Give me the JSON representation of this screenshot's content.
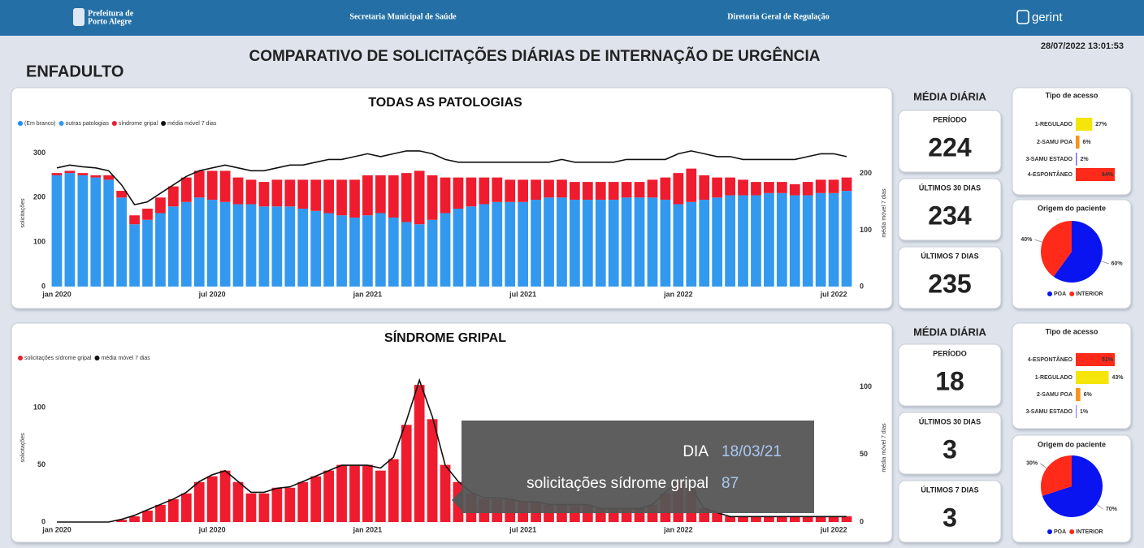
{
  "header": {
    "org_line1": "Prefeitura de",
    "org_line2": "Porto Alegre",
    "secretaria": "Secretaria Municipal de Saúde",
    "diretoria": "Diretoria Geral de Regulação",
    "brand": "gerint",
    "timestamp": "28/07/2022 13:01:53"
  },
  "unit": "ENFADULTO",
  "title": "COMPARATIVO DE SOLICITAÇÕES DIÁRIAS DE INTERNAÇÃO DE URGÊNCIA",
  "kpis": [
    {
      "heading": "MÉDIA DIÁRIA",
      "cards": [
        {
          "label": "PERÍODO",
          "value": 224
        },
        {
          "label": "ÚLTIMOS 30 DIAS",
          "value": 234
        },
        {
          "label": "ÚLTIMOS 7 DIAS",
          "value": 235
        }
      ]
    },
    {
      "heading": "MÉDIA DIÁRIA",
      "cards": [
        {
          "label": "PERÍODO",
          "value": 18
        },
        {
          "label": "ÚLTIMOS 30 DIAS",
          "value": 3
        },
        {
          "label": "ÚLTIMOS 7 DIAS",
          "value": 3
        }
      ]
    }
  ],
  "tooltip": {
    "label1": "DIA",
    "value1": "18/03/21",
    "label2": "solicitações sídrome gripal",
    "value2": 87
  },
  "chart_data": [
    {
      "type": "bar",
      "stacked": true,
      "title": "TODAS AS PATOLOGIAS",
      "ylabel": "solicitações",
      "y2label": "média móvel 7 dias",
      "categories": [
        "jan 2020",
        null,
        null,
        null,
        null,
        null,
        null,
        null,
        null,
        null,
        null,
        null,
        "jul 2020",
        null,
        null,
        null,
        null,
        null,
        null,
        null,
        null,
        null,
        null,
        null,
        "jan 2021",
        null,
        null,
        null,
        null,
        null,
        null,
        null,
        null,
        null,
        null,
        null,
        "jul 2021",
        null,
        null,
        null,
        null,
        null,
        null,
        null,
        null,
        null,
        null,
        null,
        "jan 2022",
        null,
        null,
        null,
        null,
        null,
        null,
        null,
        null,
        null,
        null,
        null,
        "jul 2022",
        null
      ],
      "ylim": [
        0,
        330
      ],
      "yticks": [
        0,
        100,
        200,
        300
      ],
      "y2lim": [
        0,
        260
      ],
      "y2ticks": [
        0,
        100,
        200
      ],
      "series": [
        {
          "name": "(Em branco)",
          "color": "#1a8cff",
          "values": [
            0,
            0,
            0,
            0,
            0,
            0,
            0,
            0,
            0,
            0,
            0,
            0,
            0,
            0,
            0,
            0,
            0,
            0,
            0,
            0,
            0,
            0,
            0,
            0,
            0,
            0,
            0,
            0,
            0,
            0,
            0,
            0,
            0,
            0,
            0,
            0,
            0,
            0,
            0,
            0,
            0,
            0,
            0,
            0,
            0,
            0,
            0,
            0,
            0,
            0,
            0,
            0,
            0,
            0,
            0,
            0,
            0,
            0,
            0,
            0,
            0,
            0
          ]
        },
        {
          "name": "outras patologias",
          "color": "#3399ee",
          "values": [
            250,
            255,
            250,
            245,
            240,
            200,
            140,
            150,
            165,
            180,
            190,
            200,
            195,
            190,
            185,
            185,
            180,
            180,
            180,
            175,
            170,
            165,
            160,
            155,
            160,
            165,
            155,
            145,
            140,
            150,
            165,
            175,
            180,
            185,
            190,
            190,
            190,
            195,
            200,
            200,
            195,
            195,
            195,
            195,
            200,
            200,
            200,
            195,
            185,
            190,
            195,
            200,
            205,
            205,
            205,
            210,
            210,
            205,
            205,
            210,
            210,
            215
          ]
        },
        {
          "name": "síndrome gripal",
          "color": "#ee1c2e",
          "values": [
            5,
            5,
            5,
            5,
            10,
            15,
            20,
            25,
            35,
            45,
            55,
            60,
            65,
            70,
            60,
            55,
            55,
            60,
            60,
            65,
            70,
            75,
            80,
            85,
            90,
            85,
            95,
            110,
            120,
            100,
            80,
            70,
            65,
            60,
            55,
            50,
            50,
            45,
            40,
            40,
            40,
            40,
            40,
            40,
            35,
            35,
            40,
            50,
            70,
            75,
            55,
            45,
            40,
            35,
            30,
            25,
            25,
            25,
            30,
            30,
            30,
            30
          ]
        },
        {
          "name": "média móvel 7 dias",
          "color": "#111111",
          "type": "line",
          "axis": "y2",
          "values": [
            210,
            215,
            212,
            210,
            205,
            180,
            145,
            150,
            165,
            180,
            195,
            205,
            210,
            215,
            210,
            205,
            205,
            210,
            215,
            215,
            220,
            225,
            225,
            230,
            235,
            230,
            235,
            240,
            240,
            235,
            225,
            220,
            220,
            220,
            220,
            220,
            220,
            220,
            220,
            225,
            220,
            220,
            220,
            220,
            225,
            225,
            225,
            225,
            235,
            240,
            235,
            230,
            230,
            225,
            225,
            225,
            225,
            225,
            230,
            235,
            235,
            230
          ]
        }
      ]
    },
    {
      "type": "bar",
      "stacked": true,
      "title": "SÍNDROME GRIPAL",
      "ylabel": "solicitações",
      "y2label": "média móvel 7 dias",
      "categories": [
        "jan 2020",
        null,
        null,
        null,
        null,
        null,
        null,
        null,
        null,
        null,
        null,
        null,
        "jul 2020",
        null,
        null,
        null,
        null,
        null,
        null,
        null,
        null,
        null,
        null,
        null,
        "jan 2021",
        null,
        null,
        null,
        null,
        null,
        null,
        null,
        null,
        null,
        null,
        null,
        "jul 2021",
        null,
        null,
        null,
        null,
        null,
        null,
        null,
        null,
        null,
        null,
        null,
        "jan 2022",
        null,
        null,
        null,
        null,
        null,
        null,
        null,
        null,
        null,
        null,
        null,
        "jul 2022",
        null
      ],
      "ylim": [
        0,
        130
      ],
      "yticks": [
        0,
        50,
        100
      ],
      "y2lim": [
        0,
        110
      ],
      "y2ticks": [
        0,
        50,
        100
      ],
      "series": [
        {
          "name": "solicitações sídrome gripal",
          "color": "#ee1c2e",
          "values": [
            0,
            0,
            0,
            0,
            0,
            2,
            5,
            10,
            15,
            20,
            25,
            35,
            40,
            45,
            35,
            25,
            25,
            30,
            30,
            35,
            40,
            45,
            50,
            50,
            50,
            45,
            55,
            85,
            120,
            90,
            50,
            35,
            25,
            20,
            20,
            20,
            18,
            18,
            15,
            15,
            15,
            15,
            12,
            12,
            12,
            12,
            15,
            25,
            35,
            30,
            12,
            8,
            5,
            5,
            5,
            5,
            5,
            5,
            5,
            5,
            5,
            5
          ]
        },
        {
          "name": "média móvel 7 dias",
          "color": "#111111",
          "type": "line",
          "axis": "y2",
          "values": [
            0,
            0,
            0,
            0,
            0,
            2,
            5,
            9,
            13,
            17,
            22,
            30,
            35,
            38,
            30,
            22,
            22,
            25,
            26,
            30,
            34,
            38,
            42,
            42,
            42,
            40,
            48,
            75,
            105,
            78,
            42,
            30,
            22,
            18,
            18,
            17,
            15,
            15,
            13,
            13,
            13,
            13,
            10,
            10,
            10,
            10,
            13,
            22,
            30,
            25,
            10,
            7,
            4,
            4,
            4,
            4,
            4,
            4,
            4,
            4,
            4,
            4
          ]
        }
      ]
    },
    {
      "type": "bar",
      "orientation": "horizontal",
      "title": "Tipo de acesso",
      "categories": [
        "1-REGULADO",
        "2-SAMU POA",
        "3-SAMU ESTADO",
        "4-ESPONTÂNEO"
      ],
      "values": [
        27,
        6,
        2,
        64
      ],
      "value_labels": [
        "27%",
        "6%",
        "2%",
        "64%"
      ],
      "colors": [
        "#f5e50a",
        "#f7941d",
        "#7b68ee",
        "#ff2a1a"
      ]
    },
    {
      "type": "pie",
      "title": "Origem do paciente",
      "categories": [
        "POA",
        "INTERIOR"
      ],
      "values": [
        60,
        40
      ],
      "value_labels": [
        "60%",
        "40%"
      ],
      "colors": [
        "#0a14f0",
        "#ff2a1a"
      ]
    },
    {
      "type": "bar",
      "orientation": "horizontal",
      "title": "Tipo de acesso",
      "categories": [
        "4-ESPONTÂNEO",
        "1-REGULADO",
        "2-SAMU POA",
        "3-SAMU ESTADO"
      ],
      "values": [
        51,
        43,
        6,
        1
      ],
      "value_labels": [
        "51%",
        "43%",
        "6%",
        "1%"
      ],
      "colors": [
        "#ff2a1a",
        "#f5e50a",
        "#f7941d",
        "#7b68ee"
      ]
    },
    {
      "type": "pie",
      "title": "Origem do paciente",
      "categories": [
        "POA",
        "INTERIOR"
      ],
      "values": [
        70,
        30
      ],
      "value_labels": [
        "70%",
        "30%"
      ],
      "colors": [
        "#0a14f0",
        "#ff2a1a"
      ]
    }
  ]
}
